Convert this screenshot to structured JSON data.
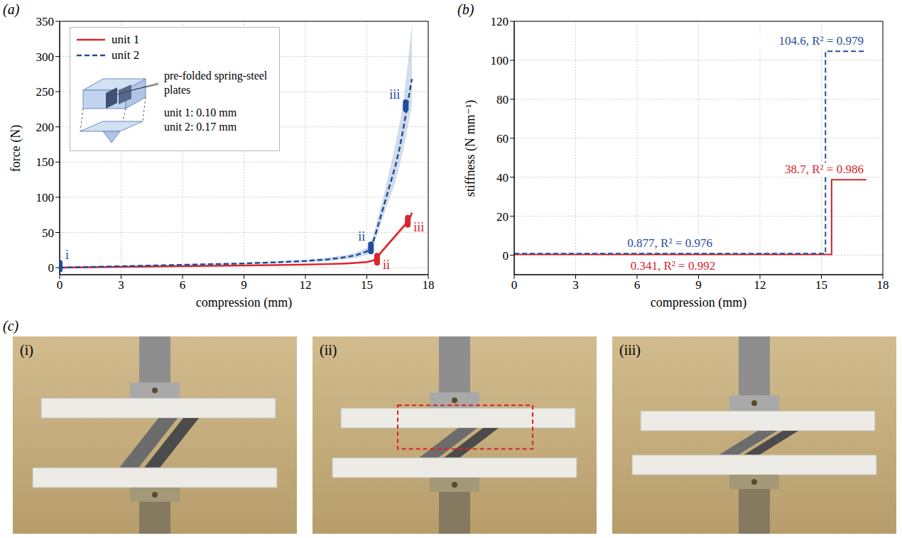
{
  "chart_data": [
    {
      "type": "line",
      "panel": "(a)",
      "x_label": "compression (mm)",
      "y_label": "force (N)",
      "xlim": [
        0,
        18
      ],
      "xticks": [
        0,
        3,
        6,
        9,
        12,
        15,
        18
      ],
      "ylim": [
        -10,
        350
      ],
      "yticks": [
        0,
        50,
        100,
        150,
        200,
        250,
        300,
        350
      ],
      "grid": true,
      "legend": "upper left",
      "inset": {
        "text": "pre-folded spring-steel plates",
        "notes": [
          "unit 1: 0.10 mm",
          "unit 2: 0.17 mm"
        ]
      },
      "series": [
        {
          "name": "unit 1",
          "color": "#d7262b",
          "line_style": "solid",
          "x": [
            0,
            1.5,
            3,
            4.5,
            6,
            7.5,
            9,
            10.5,
            12,
            13,
            14,
            14.5,
            15,
            15.3,
            15.5,
            15.7,
            16,
            16.3,
            16.6,
            16.9,
            17.1,
            17.2
          ],
          "values": [
            0,
            0.5,
            1,
            1.5,
            2,
            2.5,
            3,
            3.6,
            4.3,
            5,
            6,
            6.8,
            8,
            10,
            14,
            22,
            32,
            42,
            52,
            62,
            70,
            78
          ],
          "lower": [
            0,
            0.3,
            0.7,
            1.1,
            1.6,
            2.1,
            2.6,
            3.1,
            3.7,
            4.3,
            5.2,
            5.8,
            6.8,
            8.5,
            12,
            19,
            29,
            39,
            48,
            58,
            66,
            74
          ],
          "upper": [
            0,
            0.7,
            1.3,
            1.9,
            2.4,
            2.9,
            3.4,
            4.1,
            4.9,
            5.7,
            6.8,
            7.8,
            9.2,
            11.5,
            16,
            25,
            35,
            45,
            56,
            66,
            74,
            82
          ],
          "annotations": [
            {
              "label": "ii",
              "x": 15.5,
              "y": 12
            },
            {
              "label": "iii",
              "x": 17.0,
              "y": 66
            }
          ]
        },
        {
          "name": "unit 2",
          "color": "#1f4e9c",
          "line_style": "dashed",
          "x": [
            0,
            1.5,
            3,
            4.5,
            6,
            7.5,
            9,
            10.5,
            12,
            13,
            14,
            14.5,
            15,
            15.2,
            15.4,
            15.6,
            15.8,
            16,
            16.2,
            16.4,
            16.6,
            16.8,
            17,
            17.2
          ],
          "values": [
            0,
            1,
            2,
            3,
            4,
            5,
            6,
            7.5,
            9.5,
            11.5,
            15,
            18,
            23,
            28,
            45,
            65,
            85,
            105,
            125,
            145,
            170,
            200,
            235,
            268
          ],
          "lower": [
            0,
            0.7,
            1.5,
            2.3,
            3.2,
            4,
            4.8,
            6,
            7.5,
            9,
            12,
            14,
            18,
            22,
            38,
            55,
            72,
            90,
            105,
            122,
            145,
            170,
            200,
            230
          ],
          "upper": [
            0,
            1.3,
            2.5,
            3.7,
            4.8,
            6,
            7.2,
            9,
            11.5,
            14,
            18,
            22,
            28,
            34,
            55,
            78,
            100,
            125,
            150,
            175,
            205,
            240,
            290,
            345
          ],
          "annotations": [
            {
              "label": "i",
              "x": 0,
              "y": 2
            },
            {
              "label": "ii",
              "x": 15.2,
              "y": 28
            },
            {
              "label": "iii",
              "x": 16.9,
              "y": 230
            }
          ]
        }
      ]
    },
    {
      "type": "step",
      "panel": "(b)",
      "x_label": "compression (mm)",
      "y_label": "stiffness (N mm⁻¹)",
      "xlim": [
        0,
        18
      ],
      "xticks": [
        0,
        3,
        6,
        9,
        12,
        15,
        18
      ],
      "ylim": [
        -10,
        120
      ],
      "yticks": [
        0,
        20,
        40,
        60,
        80,
        100,
        120
      ],
      "grid": true,
      "series": [
        {
          "color": "#d7262b",
          "line_style": "solid",
          "x": [
            0,
            15.5,
            17.2
          ],
          "values": [
            0.341,
            38.7,
            38.7
          ],
          "fits": [
            {
              "value": 0.341,
              "label": "0.341, R² = 0.992"
            },
            {
              "value": 38.7,
              "label": "38.7, R² = 0.986"
            }
          ]
        },
        {
          "color": "#1f4e9c",
          "line_style": "dashed",
          "x": [
            0,
            15.2,
            17.2
          ],
          "values": [
            0.877,
            104.6,
            104.6
          ],
          "fits": [
            {
              "value": 0.877,
              "label": "0.877, R² = 0.976"
            },
            {
              "value": 104.6,
              "label": "104.6, R² = 0.979"
            }
          ]
        }
      ]
    }
  ],
  "photos": {
    "panel": "(c)",
    "labels": [
      "(i)",
      "(ii)",
      "(iii)"
    ]
  }
}
